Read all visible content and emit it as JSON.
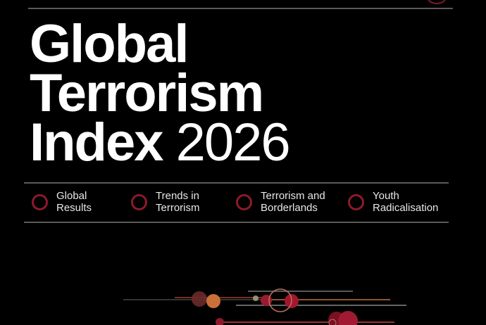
{
  "title": {
    "line1": "Global",
    "line2": "Terrorism",
    "line3": "Index",
    "year": "2026"
  },
  "nav": [
    {
      "line1": "Global",
      "line2": "Results",
      "icon": "circle-ring-icon"
    },
    {
      "line1": "Trends in",
      "line2": "Terrorism",
      "icon": "circle-ring-icon"
    },
    {
      "line1": "Terrorism and",
      "line2": "Borderlands",
      "icon": "circle-ring-icon"
    },
    {
      "line1": "Youth",
      "line2": "Radicalisation",
      "icon": "circle-ring-icon"
    }
  ],
  "colors": {
    "background": "#000000",
    "accent": "#8b1a2b",
    "rule": "#5a5a5a"
  }
}
